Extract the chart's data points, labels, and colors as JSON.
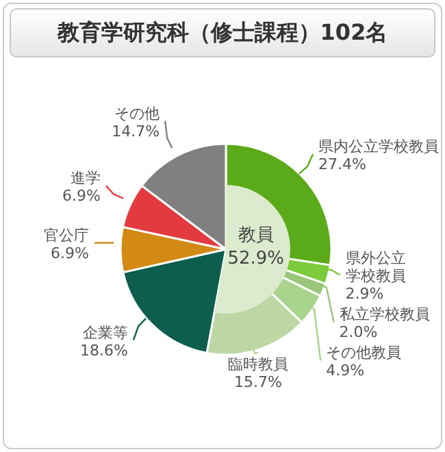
{
  "chart_data": [
    {
      "type": "pie",
      "title": "教育学研究科（修士課程）102名",
      "categories": [
        "県内公立学校教員",
        "県外公立学校教員",
        "私立学校教員",
        "その他教員",
        "臨時教員",
        "企業等",
        "官公庁",
        "進学",
        "その他"
      ],
      "values": [
        27.4,
        2.9,
        2.0,
        4.9,
        15.7,
        18.6,
        6.9,
        6.9,
        14.7
      ],
      "value_labels": [
        "27.4%",
        "2.9%",
        "2.0%",
        "4.9%",
        "15.7%",
        "18.6%",
        "6.9%",
        "6.9%",
        "14.7%"
      ],
      "colors": [
        "#5aaa1a",
        "#7ccb3c",
        "#98c67a",
        "#a9d48c",
        "#bcd7a3",
        "#0e5e4f",
        "#d28a14",
        "#e23a3e",
        "#808080"
      ],
      "legend": false
    },
    {
      "type": "pie",
      "categories": [
        "教員"
      ],
      "values": [
        52.9
      ],
      "value_labels": [
        "52.9%"
      ],
      "colors": [
        "#dcebcd"
      ],
      "legend": false
    }
  ]
}
